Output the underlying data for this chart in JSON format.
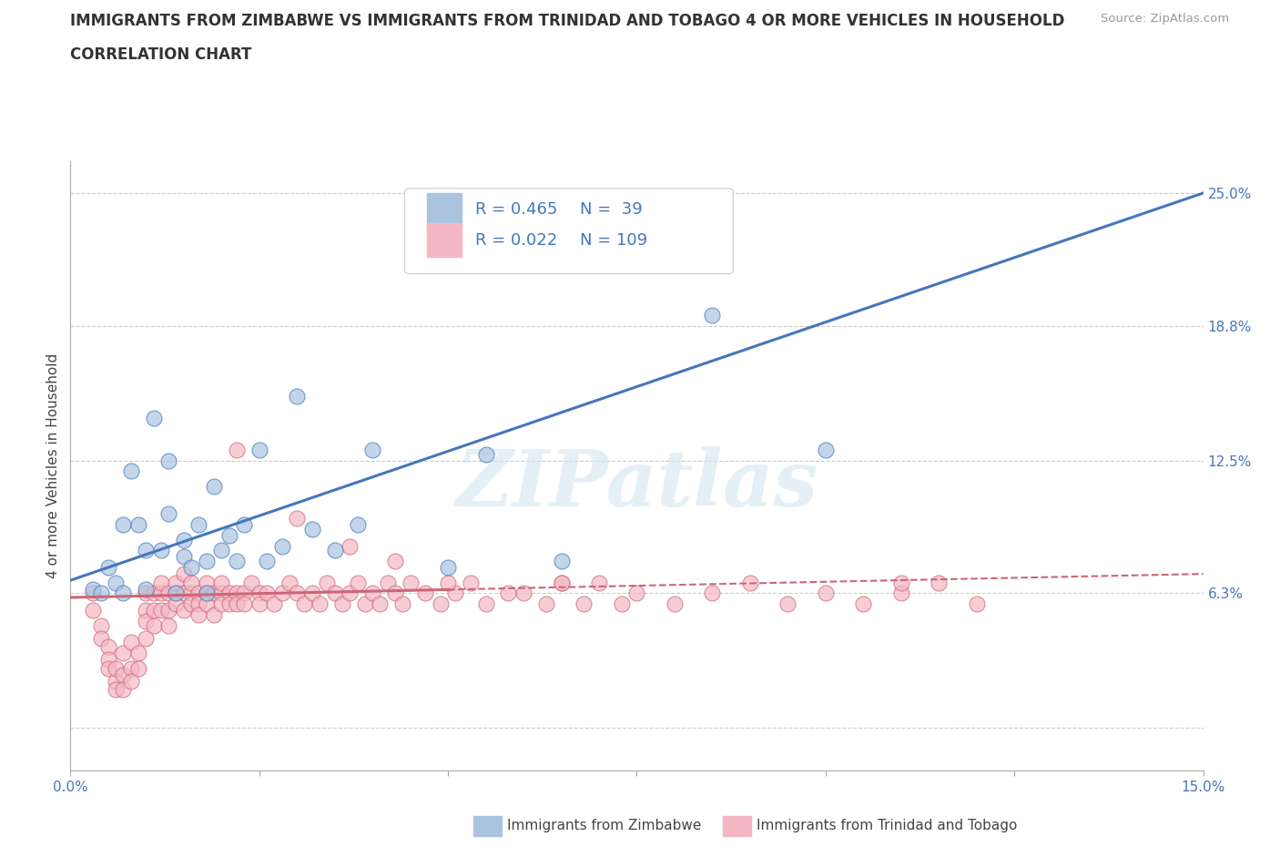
{
  "title_line1": "IMMIGRANTS FROM ZIMBABWE VS IMMIGRANTS FROM TRINIDAD AND TOBAGO 4 OR MORE VEHICLES IN HOUSEHOLD",
  "title_line2": "CORRELATION CHART",
  "source": "Source: ZipAtlas.com",
  "ylabel": "4 or more Vehicles in Household",
  "xlim": [
    0,
    0.15
  ],
  "ylim": [
    -0.02,
    0.265
  ],
  "xticks": [
    0.0,
    0.025,
    0.05,
    0.075,
    0.1,
    0.125,
    0.15
  ],
  "xticklabels": [
    "0.0%",
    "",
    "",
    "",
    "",
    "",
    "15.0%"
  ],
  "ytick_positions": [
    0.0,
    0.063,
    0.125,
    0.188,
    0.25
  ],
  "ytick_labels": [
    "",
    "6.3%",
    "12.5%",
    "18.8%",
    "25.0%"
  ],
  "grid_color": "#cccccc",
  "bg_color": "#ffffff",
  "zimbabwe_color": "#aac4e0",
  "trinidad_color": "#f4b8c4",
  "zimbabwe_line_color": "#4477bb",
  "trinidad_line_color": "#cc6677",
  "zimbabwe_R": 0.465,
  "zimbabwe_N": 39,
  "trinidad_R": 0.022,
  "trinidad_N": 109,
  "legend_label1": "Immigrants from Zimbabwe",
  "legend_label2": "Immigrants from Trinidad and Tobago",
  "watermark": "ZIPatlas",
  "zim_trend": [
    0.069,
    0.25
  ],
  "tri_trend_solid": [
    0.061,
    0.068
  ],
  "tri_trend_dash": [
    0.068,
    0.072
  ],
  "zimbabwe_x": [
    0.003,
    0.004,
    0.005,
    0.006,
    0.007,
    0.007,
    0.008,
    0.009,
    0.01,
    0.01,
    0.011,
    0.012,
    0.013,
    0.013,
    0.014,
    0.015,
    0.015,
    0.016,
    0.017,
    0.018,
    0.018,
    0.019,
    0.02,
    0.021,
    0.022,
    0.023,
    0.025,
    0.026,
    0.028,
    0.03,
    0.032,
    0.035,
    0.038,
    0.04,
    0.05,
    0.055,
    0.065,
    0.085,
    0.1
  ],
  "zimbabwe_y": [
    0.065,
    0.063,
    0.075,
    0.068,
    0.095,
    0.063,
    0.12,
    0.095,
    0.065,
    0.083,
    0.145,
    0.083,
    0.1,
    0.125,
    0.063,
    0.088,
    0.08,
    0.075,
    0.095,
    0.078,
    0.063,
    0.113,
    0.083,
    0.09,
    0.078,
    0.095,
    0.13,
    0.078,
    0.085,
    0.155,
    0.093,
    0.083,
    0.095,
    0.13,
    0.075,
    0.128,
    0.078,
    0.193,
    0.13
  ],
  "trinidad_x": [
    0.003,
    0.003,
    0.004,
    0.004,
    0.005,
    0.005,
    0.005,
    0.006,
    0.006,
    0.006,
    0.007,
    0.007,
    0.007,
    0.008,
    0.008,
    0.008,
    0.009,
    0.009,
    0.01,
    0.01,
    0.01,
    0.01,
    0.011,
    0.011,
    0.011,
    0.012,
    0.012,
    0.012,
    0.013,
    0.013,
    0.013,
    0.014,
    0.014,
    0.014,
    0.015,
    0.015,
    0.015,
    0.016,
    0.016,
    0.016,
    0.017,
    0.017,
    0.017,
    0.018,
    0.018,
    0.018,
    0.019,
    0.019,
    0.02,
    0.02,
    0.02,
    0.021,
    0.021,
    0.022,
    0.022,
    0.023,
    0.023,
    0.024,
    0.025,
    0.025,
    0.026,
    0.027,
    0.028,
    0.029,
    0.03,
    0.031,
    0.032,
    0.033,
    0.034,
    0.035,
    0.036,
    0.037,
    0.038,
    0.039,
    0.04,
    0.041,
    0.042,
    0.043,
    0.044,
    0.045,
    0.047,
    0.049,
    0.051,
    0.053,
    0.055,
    0.06,
    0.063,
    0.065,
    0.068,
    0.07,
    0.075,
    0.08,
    0.085,
    0.09,
    0.095,
    0.1,
    0.105,
    0.11,
    0.115,
    0.12,
    0.022,
    0.03,
    0.037,
    0.043,
    0.05,
    0.058,
    0.065,
    0.073,
    0.11
  ],
  "trinidad_y": [
    0.063,
    0.055,
    0.048,
    0.042,
    0.038,
    0.032,
    0.028,
    0.022,
    0.018,
    0.028,
    0.025,
    0.018,
    0.035,
    0.028,
    0.022,
    0.04,
    0.035,
    0.028,
    0.063,
    0.055,
    0.05,
    0.042,
    0.063,
    0.055,
    0.048,
    0.063,
    0.055,
    0.068,
    0.063,
    0.055,
    0.048,
    0.063,
    0.058,
    0.068,
    0.063,
    0.055,
    0.072,
    0.063,
    0.058,
    0.068,
    0.063,
    0.058,
    0.053,
    0.063,
    0.058,
    0.068,
    0.063,
    0.053,
    0.063,
    0.058,
    0.068,
    0.063,
    0.058,
    0.063,
    0.058,
    0.063,
    0.058,
    0.068,
    0.063,
    0.058,
    0.063,
    0.058,
    0.063,
    0.068,
    0.063,
    0.058,
    0.063,
    0.058,
    0.068,
    0.063,
    0.058,
    0.063,
    0.068,
    0.058,
    0.063,
    0.058,
    0.068,
    0.063,
    0.058,
    0.068,
    0.063,
    0.058,
    0.063,
    0.068,
    0.058,
    0.063,
    0.058,
    0.068,
    0.058,
    0.068,
    0.063,
    0.058,
    0.063,
    0.068,
    0.058,
    0.063,
    0.058,
    0.063,
    0.068,
    0.058,
    0.13,
    0.098,
    0.085,
    0.078,
    0.068,
    0.063,
    0.068,
    0.058,
    0.068
  ]
}
